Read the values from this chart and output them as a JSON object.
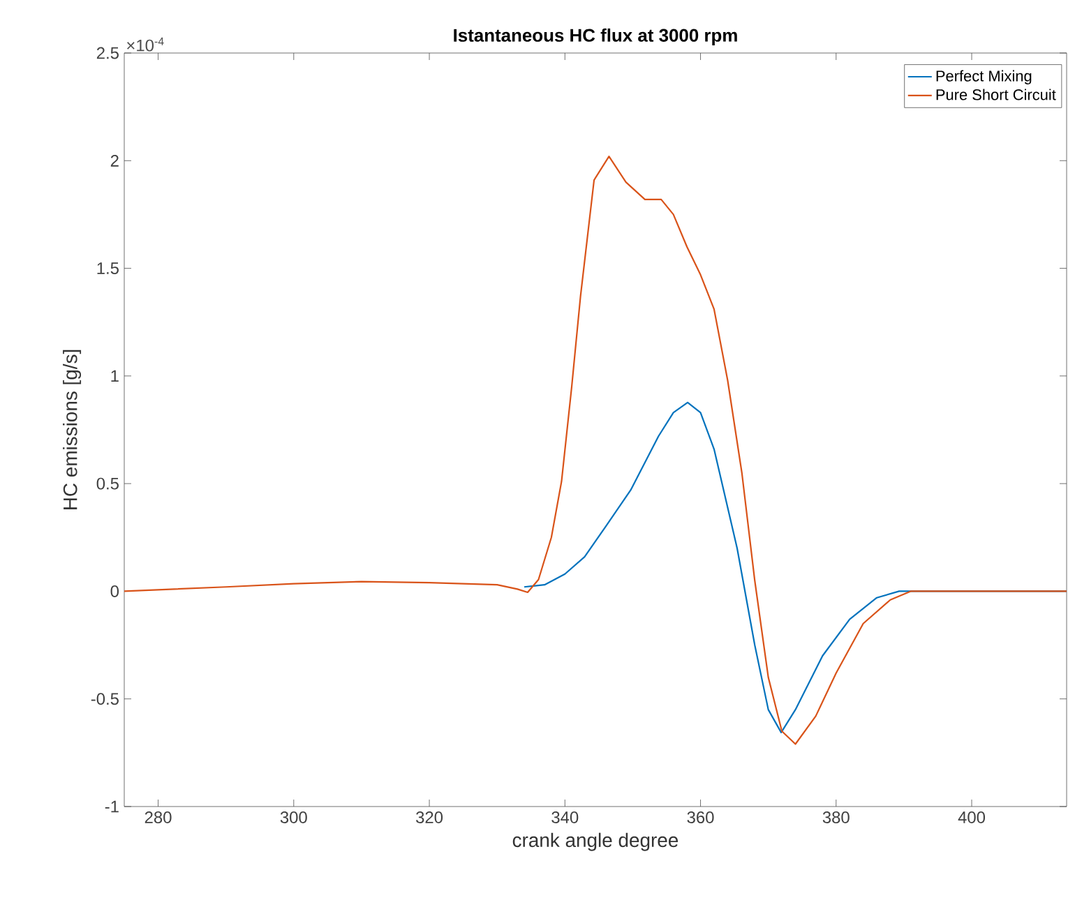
{
  "chart_data": {
    "type": "line",
    "title": "Istantaneous HC flux at 3000 rpm",
    "xlabel": "crank angle degree",
    "ylabel": "HC emissions [g/s]",
    "annotations": [
      "×10$^{-4}$"
    ],
    "xlim": [
      275,
      414
    ],
    "ylim": [
      -1,
      2.5
    ],
    "xticks": [
      280,
      300,
      320,
      340,
      360,
      380,
      400
    ],
    "yticks": [
      -1,
      -0.5,
      0,
      0.5,
      1,
      1.5,
      2,
      2.5
    ],
    "grid": false,
    "legend": "top right",
    "line_style": "solid",
    "series": [
      {
        "name": "Perfect Mixing",
        "color": "#0072bd",
        "x": [
          334,
          337,
          340,
          342.9,
          346,
          349.7,
          353.8,
          356,
          358.1,
          360,
          362,
          365.4,
          368,
          370,
          371.9,
          374,
          378,
          382,
          386,
          389.3,
          395,
          414
        ],
        "values": [
          0.02,
          0.03,
          0.08,
          0.16,
          0.3,
          0.47,
          0.72,
          0.83,
          0.877,
          0.83,
          0.66,
          0.2,
          -0.25,
          -0.55,
          -0.656,
          -0.55,
          -0.3,
          -0.13,
          -0.03,
          0,
          0,
          0
        ]
      },
      {
        "name": "Pure Short Circuit",
        "color": "#d95319",
        "x": [
          275,
          290,
          300,
          310,
          320,
          330,
          333,
          334.5,
          336.1,
          338,
          339.5,
          341,
          342.3,
          344.3,
          346.5,
          349,
          351.8,
          354.2,
          356,
          358,
          360,
          362,
          364,
          366.1,
          368,
          370,
          372,
          374,
          377,
          380,
          384,
          388,
          391,
          395,
          414
        ],
        "values": [
          0,
          0.02,
          0.035,
          0.045,
          0.04,
          0.03,
          0.01,
          -0.005,
          0.054,
          0.25,
          0.51,
          0.95,
          1.37,
          1.91,
          2.02,
          1.9,
          1.82,
          1.82,
          1.75,
          1.6,
          1.47,
          1.31,
          0.98,
          0.55,
          0.05,
          -0.4,
          -0.65,
          -0.71,
          -0.58,
          -0.38,
          -0.15,
          -0.04,
          0,
          0,
          0
        ]
      }
    ]
  }
}
